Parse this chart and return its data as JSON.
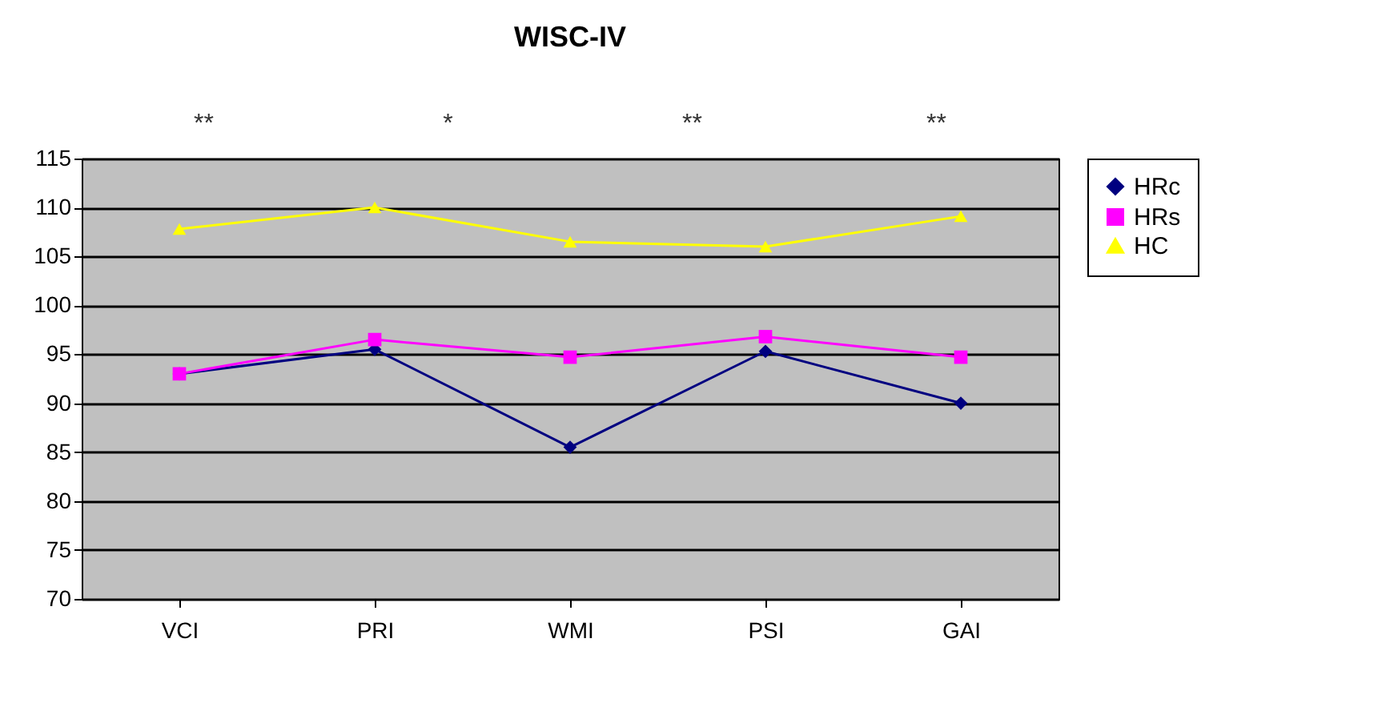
{
  "chart_data": {
    "type": "line",
    "title": "WISC-IV",
    "categories": [
      "VCI",
      "PRI",
      "WMI",
      "PSI",
      "GAI"
    ],
    "series": [
      {
        "name": "HRc",
        "color": "#000080",
        "marker": "diamond",
        "values": [
          93,
          95.5,
          85.5,
          95.3,
          90
        ]
      },
      {
        "name": "HRs",
        "color": "#ff00ff",
        "marker": "square",
        "values": [
          93,
          96.5,
          94.7,
          96.8,
          94.7
        ]
      },
      {
        "name": "HC",
        "color": "#ffff00",
        "marker": "triangle",
        "values": [
          107.8,
          110,
          106.5,
          106,
          109.1
        ]
      }
    ],
    "ylim": [
      70,
      115
    ],
    "yticks": [
      70,
      75,
      80,
      85,
      90,
      95,
      100,
      105,
      110,
      115
    ],
    "grid": "y",
    "legend": "right",
    "annotations": [
      "**",
      "*",
      "**",
      "**"
    ]
  }
}
